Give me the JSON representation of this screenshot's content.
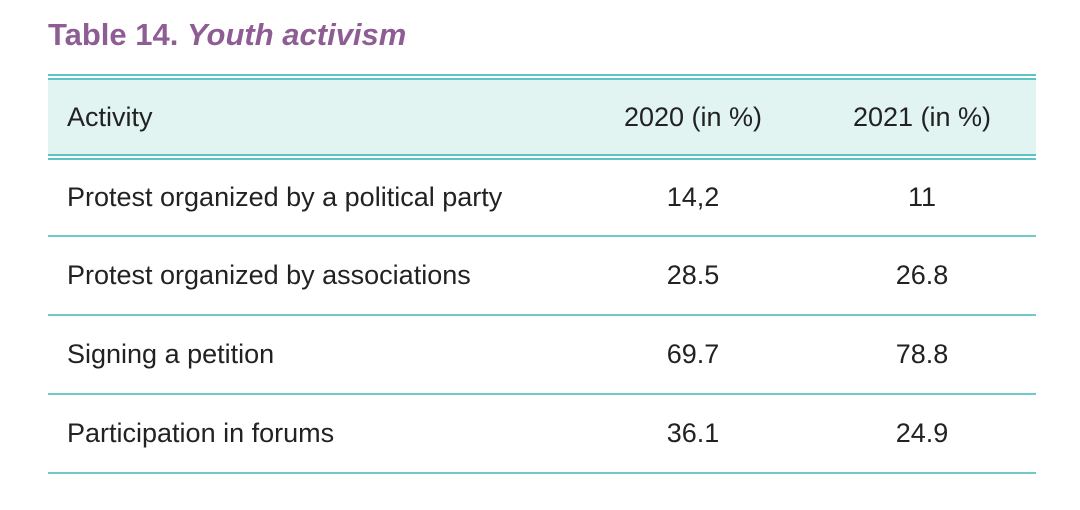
{
  "caption": {
    "label": "Table 14.",
    "title": "Youth activism"
  },
  "table": {
    "columns": [
      "Activity",
      "2020 (in %)",
      "2021 (in %)"
    ],
    "rows": [
      {
        "activity": "Protest organized by a political party",
        "y2020": "14,2",
        "y2021": "11"
      },
      {
        "activity": "Protest organized by associations",
        "y2020": "28.5",
        "y2021": "26.8"
      },
      {
        "activity": "Signing a petition",
        "y2020": "69.7",
        "y2021": "78.8"
      },
      {
        "activity": "Participation in forums",
        "y2020": "36.1",
        "y2021": "24.9"
      }
    ]
  },
  "colors": {
    "caption": "#8e5d94",
    "header_background": "#e1f4f2",
    "rule": "#5cc5c4",
    "text": "#222222"
  }
}
